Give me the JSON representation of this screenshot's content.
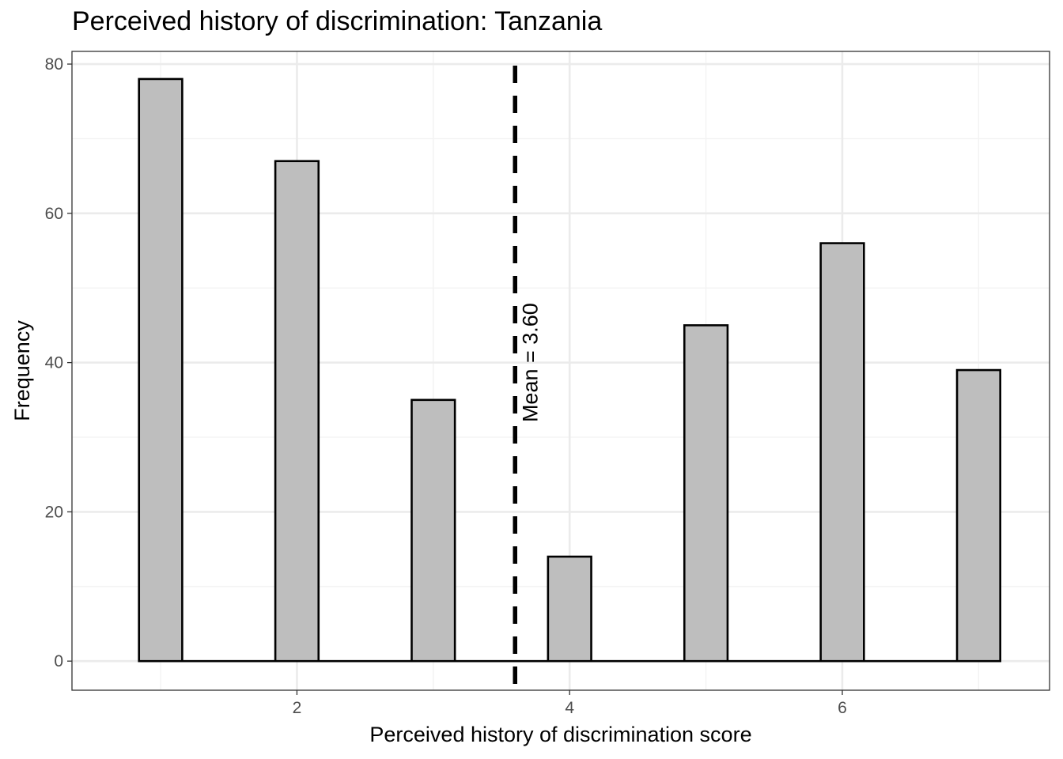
{
  "chart_data": {
    "type": "bar",
    "title": "Perceived history of discrimination: Tanzania",
    "xlabel": "Perceived history of discrimination score",
    "ylabel": "Frequency",
    "x": [
      1,
      2,
      3,
      4,
      5,
      6,
      7
    ],
    "values": [
      78,
      67,
      35,
      14,
      45,
      56,
      39
    ],
    "xlim": [
      0.35,
      7.52
    ],
    "ylim": [
      -3.9,
      81.7
    ],
    "x_ticks": [
      2,
      4,
      6
    ],
    "y_ticks": [
      0,
      20,
      40,
      60,
      80
    ],
    "grid": true,
    "bar_fill": "#BEBEBE",
    "bar_stroke": "#000000",
    "mean_line": {
      "value": 3.6,
      "label": "Mean = 3.60",
      "style": "dashed"
    }
  }
}
